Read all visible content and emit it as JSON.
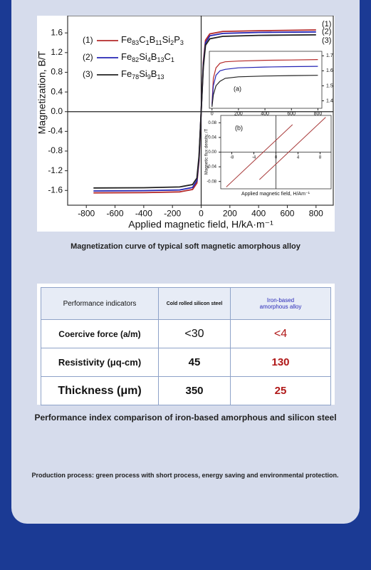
{
  "chart_data": [
    {
      "type": "line",
      "x_label": "Applied magnetic field, H/kA·m⁻¹",
      "y_label": "Magnetization, B/T",
      "x": [
        -750,
        -400,
        -150,
        -60,
        -30,
        -15,
        0,
        15,
        30,
        60,
        150,
        400,
        800
      ],
      "series": [
        {
          "name": "Fe83C1B11Si2P3",
          "color": "#b52a2a",
          "values": [
            -1.65,
            -1.645,
            -1.63,
            -1.58,
            -1.45,
            -1.0,
            0,
            1.0,
            1.45,
            1.58,
            1.63,
            1.645,
            1.66
          ]
        },
        {
          "name": "Fe82Si4B13C1",
          "color": "#2424b4",
          "values": [
            -1.61,
            -1.605,
            -1.59,
            -1.54,
            -1.4,
            -0.95,
            0,
            0.95,
            1.4,
            1.54,
            1.59,
            1.61,
            1.62
          ]
        },
        {
          "name": "Fe78Si9B13",
          "color": "#222222",
          "values": [
            -1.55,
            -1.545,
            -1.53,
            -1.48,
            -1.35,
            -0.9,
            0,
            0.9,
            1.35,
            1.48,
            1.53,
            1.55,
            1.56
          ]
        }
      ],
      "curve_labels": [
        "(1)",
        "(2)",
        "(3)"
      ],
      "xlim": [
        -930,
        920
      ],
      "ylim": [
        -1.9,
        1.95
      ],
      "xticks": [
        -800,
        -600,
        -400,
        -200,
        0,
        200,
        400,
        600,
        800
      ],
      "yticks": [
        -1.6,
        -1.2,
        -0.8,
        -0.4,
        {
          "value": 0,
          "label": "0.0"
        },
        0.4,
        0.8,
        1.2,
        1.6
      ]
    },
    {
      "type": "line",
      "label": "(a)",
      "x": [
        0,
        10,
        30,
        60,
        100,
        200,
        400,
        600,
        800
      ],
      "series": [
        {
          "color": "#b52a2a",
          "values": [
            1.38,
            1.55,
            1.62,
            1.65,
            1.66,
            1.665,
            1.67,
            1.672,
            1.675
          ]
        },
        {
          "color": "#2424b4",
          "values": [
            1.37,
            1.5,
            1.57,
            1.6,
            1.61,
            1.62,
            1.625,
            1.628,
            1.63
          ]
        },
        {
          "color": "#222222",
          "values": [
            1.36,
            1.44,
            1.5,
            1.53,
            1.55,
            1.56,
            1.565,
            1.568,
            1.57
          ]
        }
      ],
      "xlim": [
        -20,
        830
      ],
      "ylim": [
        1.35,
        1.73
      ],
      "xticks": [
        0,
        200,
        400,
        600,
        800
      ],
      "yticks": [
        1.4,
        1.5,
        1.6,
        1.7
      ]
    },
    {
      "type": "line",
      "label": "(b)",
      "x_label": "Applied magnetic field, H/Am⁻¹",
      "y_label": "Magnetic flux density, /T",
      "series": [
        {
          "color": "#a83a3a",
          "x": [
            -9,
            3
          ],
          "values": [
            -0.095,
            0.075
          ]
        },
        {
          "color": "#a83a3a",
          "x": [
            -3,
            9
          ],
          "values": [
            -0.075,
            0.095
          ]
        }
      ],
      "xlim": [
        -10,
        10
      ],
      "ylim": [
        -0.1,
        0.1
      ],
      "xticks": [
        -8,
        -4,
        0,
        4,
        8
      ],
      "yticks": [
        -0.08,
        -0.04,
        {
          "value": 0,
          "label": "0.00"
        },
        0.04,
        0.08
      ]
    }
  ],
  "figure_caption": "Magnetization curve of typical soft magnetic amorphous alloy",
  "table": {
    "header": [
      "Performance indicators",
      "Cold rolled silicon steel",
      "Iron-based amorphous alloy"
    ],
    "rows": [
      [
        "Coercive force (a/m)",
        "<30",
        "<4"
      ],
      [
        "Resistivity (μq-cm)",
        "45",
        "130"
      ],
      [
        "Thickness (μm)",
        "350",
        "25"
      ]
    ]
  },
  "table_caption": "Performance index comparison of iron-based amorphous and silicon steel",
  "production_text": "Production process: green process with short process, energy saving and environmental protection."
}
